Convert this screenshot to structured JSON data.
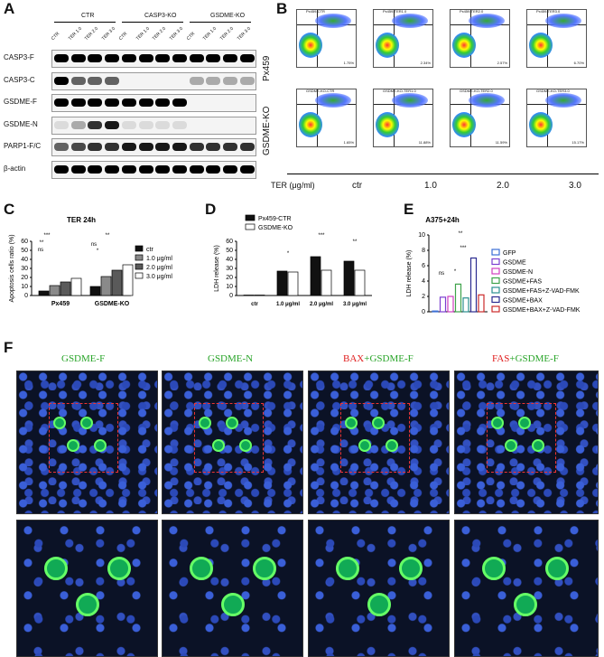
{
  "panels": {
    "A": "A",
    "B": "B",
    "C": "C",
    "D": "D",
    "E": "E",
    "F": "F"
  },
  "blot": {
    "groups": [
      "CTR",
      "CASP3-KO",
      "GSDME-KO"
    ],
    "lanes": [
      "CTR",
      "TER 1.0",
      "TER 2.0",
      "TER 3.0",
      "CTR",
      "TER 1.0",
      "TER 2.0",
      "TER 3.0",
      "CTR",
      "TER 1.0",
      "TER 2.0",
      "TER 3.0"
    ],
    "rows": [
      "CASP3-F",
      "CASP3-C",
      "GSDME-F",
      "GSDME-N",
      "PARP1-F/C",
      "β-actin"
    ]
  },
  "flow": {
    "rows": [
      "Px459",
      "GSDME-KO"
    ],
    "columns": [
      "ctr",
      "1.0",
      "2.0",
      "3.0"
    ],
    "axis_caption": "TER (μg/ml)",
    "titles": [
      [
        "Px459-CTR",
        "Px459-TER1.0",
        "Px459-TER2.0",
        "Px459-TER3.0"
      ],
      [
        "GSDME-KO-CTR",
        "GSDME-KO-TER1.0",
        "GSDME-KO-TER2.0",
        "GSDME-KO-TER3.0"
      ]
    ],
    "q4": [
      [
        "1.75%",
        "2.34%",
        "2.57%",
        "6.70%"
      ],
      [
        "1.65%",
        "11.88%",
        "11.59%",
        "15.17%"
      ]
    ]
  },
  "chart_data": [
    {
      "type": "bar",
      "title": "TER 24h",
      "ylabel": "Apoptosis cells ratio (%)",
      "ylim": [
        0,
        60
      ],
      "yticks": [
        "0",
        "10",
        "20",
        "30",
        "40",
        "50",
        "60"
      ],
      "categories": [
        "Px459",
        "GSDME-KO"
      ],
      "series": [
        {
          "name": "ctr",
          "values": [
            5,
            10
          ],
          "color": "#111111"
        },
        {
          "name": "1.0 μg/ml",
          "values": [
            11,
            21
          ],
          "color": "#8a8a8a"
        },
        {
          "name": "2.0 μg/ml",
          "values": [
            15,
            28
          ],
          "color": "#5a5a5a"
        },
        {
          "name": "3.0 μg/ml",
          "values": [
            19,
            34
          ],
          "color": "#ffffff"
        }
      ],
      "significance": [
        "***",
        "**",
        "ns",
        "*",
        "**",
        "ns"
      ]
    },
    {
      "type": "bar",
      "ylabel": "LDH release (%)",
      "ylim": [
        0,
        60
      ],
      "yticks": [
        "0",
        "10",
        "20",
        "30",
        "40",
        "50",
        "60"
      ],
      "categories": [
        "ctr",
        "1.0 μg/ml",
        "2.0 μg/ml",
        "3.0 μg/ml"
      ],
      "series": [
        {
          "name": "Px459-CTR",
          "values": [
            0.5,
            27,
            43,
            38
          ],
          "color": "#111111"
        },
        {
          "name": "GSDME-KO",
          "values": [
            0.5,
            26,
            28,
            28
          ],
          "color": "#ffffff"
        }
      ],
      "significance": [
        "*",
        "***",
        "**"
      ]
    },
    {
      "type": "bar",
      "title": "A375+24h",
      "ylabel": "LDH release (%)",
      "ylim": [
        0,
        10
      ],
      "yticks": [
        "0",
        "2",
        "4",
        "6",
        "8",
        "10"
      ],
      "categories": [
        "GFP",
        "GSDME",
        "GSDME-N",
        "GSDME+FAS",
        "GSDME+FAS+Z-VAD-FMK",
        "GSDME+BAX",
        "GSDME+BAX+Z-VAD-FMK"
      ],
      "values": [
        0.1,
        1.9,
        2.0,
        3.6,
        1.8,
        7.0,
        2.2
      ],
      "colors": [
        "#3b6fd6",
        "#7b3fd0",
        "#d040c0",
        "#3ea34a",
        "#2a8f8f",
        "#2b2b90",
        "#cc2a2a"
      ],
      "significance": [
        "**",
        "ns",
        "*",
        "***"
      ]
    }
  ],
  "micro": {
    "titles": [
      {
        "a": "GSDME-F",
        "b": ""
      },
      {
        "a": "GSDME-N",
        "b": ""
      },
      {
        "a": "BAX",
        "b": "+GSDME-F"
      },
      {
        "a": "FAS",
        "b": "+GSDME-F"
      }
    ]
  },
  "colors": {
    "green": "#2aa52a",
    "red": "#e02020"
  }
}
